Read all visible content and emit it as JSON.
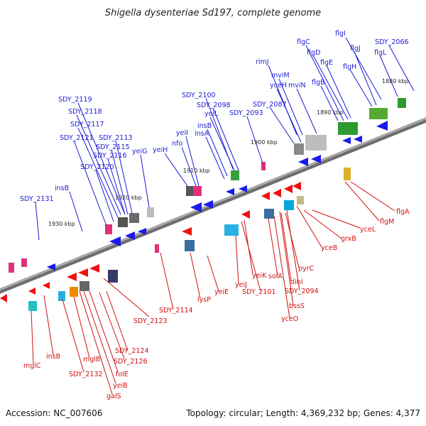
{
  "title": "Shigella dysenteriae Sd197, complete genome",
  "footer": {
    "accession": "Accession: NC_007606",
    "summary": "Topology: circular; Length: 4,369,232 bp; Genes: 4,377"
  },
  "colors": {
    "forward_label": "#1b1bd6",
    "reverse_label": "#d11010",
    "backbone": "#8a8a8a",
    "forward_arrow": "#1a1aee",
    "reverse_arrow": "#ee1111",
    "tick": "#2a8a2a"
  },
  "kbp_markers": [
    "1880 kbp",
    "1890 kbp",
    "1900 kbp",
    "1910 kbp",
    "1920 kbp",
    "1930 kbp"
  ],
  "forward_genes": [
    "flgI",
    "SDY_2066",
    "flgC",
    "flgJ",
    "flgD",
    "flgL",
    "flgE",
    "rimJ",
    "flgH",
    "mviM",
    "yceH",
    "mviN",
    "flgB",
    "SDY_2100",
    "SDY_2087",
    "SDY_2098",
    "yeiL",
    "SDY_2093",
    "insB",
    "SDY_2119",
    "insA",
    "SDY_2118",
    "yeiI",
    "SDY_2117",
    "nfo",
    "SDY_2121",
    "SDY_2113",
    "SDY_2115",
    "yeiH",
    "yeiG",
    "SDY_2116",
    "SDY_2120",
    "insB",
    "SDY_2131"
  ],
  "reverse_genes": [
    "flgA",
    "flgM",
    "yceL",
    "grxB",
    "yceB",
    "pyrC",
    "dinI",
    "solA",
    "SDY_2094",
    "bssS",
    "yceO",
    "yeiK",
    "SDY_2101",
    "yeiJ",
    "yeiE",
    "lysP",
    "SDY_2114",
    "SDY_2123",
    "SDY_2124",
    "SDY_2126",
    "mglC",
    "insB",
    "mglB",
    "SDY_2132",
    "folE",
    "yeiB",
    "galS"
  ]
}
